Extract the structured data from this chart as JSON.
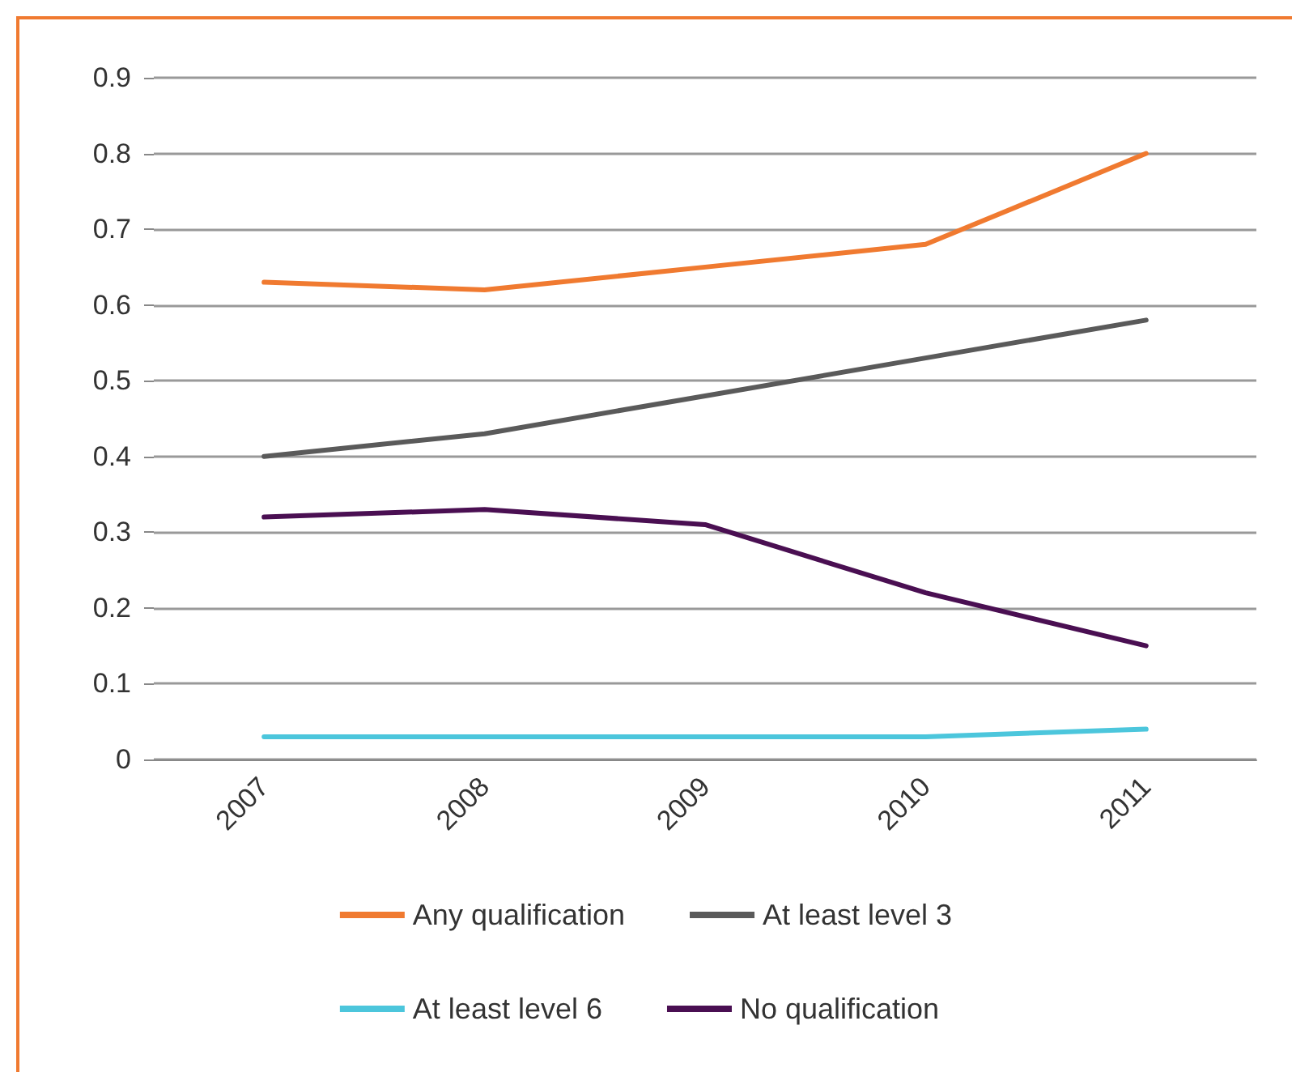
{
  "chart_data": {
    "type": "line",
    "categories": [
      "2007",
      "2008",
      "2009",
      "2010",
      "2011"
    ],
    "series": [
      {
        "name": "Any qualification",
        "color": "#f07a30",
        "values": [
          0.63,
          0.62,
          0.65,
          0.68,
          0.8
        ]
      },
      {
        "name": "At least level 3",
        "color": "#5a5a5a",
        "values": [
          0.4,
          0.43,
          0.48,
          0.53,
          0.58
        ]
      },
      {
        "name": "At least level 6",
        "color": "#4cc6dc",
        "values": [
          0.03,
          0.03,
          0.03,
          0.03,
          0.04
        ]
      },
      {
        "name": "No qualification",
        "color": "#4a0f52",
        "values": [
          0.32,
          0.33,
          0.31,
          0.22,
          0.15
        ]
      }
    ],
    "ylim": [
      0,
      0.9
    ],
    "yticks": [
      0,
      0.1,
      0.2,
      0.3,
      0.4,
      0.5,
      0.6,
      0.7,
      0.8,
      0.9
    ],
    "grid": "y",
    "legend": "bottom",
    "marker": "none",
    "line_style": "solid"
  }
}
